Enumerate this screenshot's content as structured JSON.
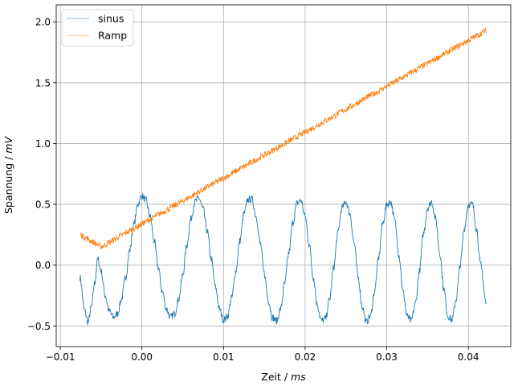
{
  "chart_data": {
    "type": "line",
    "xlabel_main": "Zeit / ",
    "xlabel_unit": "ms",
    "ylabel_main": "Spannung / ",
    "ylabel_unit": "mV",
    "xlim": [
      -0.0105,
      0.0452
    ],
    "ylim": [
      -0.67,
      2.14
    ],
    "xticks": [
      -0.01,
      0.0,
      0.01,
      0.02,
      0.03,
      0.04
    ],
    "xtick_labels": [
      "−0.01",
      "0.00",
      "0.01",
      "0.02",
      "0.03",
      "0.04"
    ],
    "yticks": [
      -0.5,
      0.0,
      0.5,
      1.0,
      1.5,
      2.0
    ],
    "ytick_labels": [
      "−0.5",
      "0.0",
      "0.5",
      "1.0",
      "1.5",
      "2.0"
    ],
    "grid": true,
    "legend_position": "upper-left",
    "series": [
      {
        "name": "sinus",
        "color": "#1f77b4",
        "noise": 0.03,
        "x": [
          -0.0076,
          -0.007,
          -0.0066,
          -0.0062,
          -0.0058,
          -0.0054,
          -0.005,
          -0.0045,
          -0.004,
          -0.0035,
          -0.003,
          -0.0025,
          -0.002,
          -0.0015,
          -0.001,
          -0.0005,
          0.0,
          0.0005,
          0.001,
          0.0015,
          0.002,
          0.0025,
          0.003,
          0.0035,
          0.004,
          0.0045,
          0.005,
          0.0055,
          0.006,
          0.0065,
          0.007,
          0.0075,
          0.008,
          0.0085,
          0.009,
          0.0095,
          0.01,
          0.0105,
          0.011,
          0.0115,
          0.012,
          0.0125,
          0.013,
          0.0135,
          0.014,
          0.0145,
          0.015,
          0.0155,
          0.016,
          0.0165,
          0.017,
          0.0175,
          0.018,
          0.0185,
          0.019,
          0.0195,
          0.02,
          0.0205,
          0.021,
          0.0215,
          0.022,
          0.0225,
          0.023,
          0.0235,
          0.024,
          0.0245,
          0.025,
          0.0255,
          0.026,
          0.0265,
          0.027,
          0.0275,
          0.028,
          0.0285,
          0.029,
          0.0295,
          0.03,
          0.0305,
          0.031,
          0.0315,
          0.032,
          0.0325,
          0.033,
          0.0335,
          0.034,
          0.0345,
          0.035,
          0.0355,
          0.036,
          0.0365,
          0.037,
          0.0375,
          0.038,
          0.0385,
          0.039,
          0.0395,
          0.04,
          0.0405,
          0.041,
          0.0415,
          0.0422
        ],
        "y": [
          -0.1,
          -0.38,
          -0.47,
          -0.35,
          -0.15,
          0.05,
          -0.05,
          -0.25,
          -0.38,
          -0.43,
          -0.4,
          -0.28,
          -0.1,
          0.12,
          0.33,
          0.5,
          0.57,
          0.53,
          0.4,
          0.2,
          -0.02,
          -0.22,
          -0.36,
          -0.43,
          -0.4,
          -0.28,
          -0.08,
          0.16,
          0.38,
          0.52,
          0.55,
          0.46,
          0.28,
          0.05,
          -0.18,
          -0.36,
          -0.45,
          -0.42,
          -0.27,
          -0.05,
          0.2,
          0.42,
          0.54,
          0.54,
          0.4,
          0.18,
          -0.07,
          -0.29,
          -0.43,
          -0.46,
          -0.36,
          -0.15,
          0.1,
          0.35,
          0.51,
          0.53,
          0.4,
          0.17,
          -0.1,
          -0.33,
          -0.46,
          -0.44,
          -0.28,
          -0.02,
          0.26,
          0.47,
          0.52,
          0.42,
          0.18,
          -0.1,
          -0.34,
          -0.47,
          -0.42,
          -0.22,
          0.06,
          0.34,
          0.5,
          0.52,
          0.36,
          0.08,
          -0.22,
          -0.42,
          -0.46,
          -0.32,
          -0.05,
          0.26,
          0.47,
          0.52,
          0.38,
          0.1,
          -0.2,
          -0.42,
          -0.45,
          -0.28,
          0.0,
          0.3,
          0.5,
          0.5,
          0.3,
          0.0,
          -0.32
        ]
      },
      {
        "name": "Ramp",
        "color": "#ff7f0e",
        "noise": 0.025,
        "x": [
          -0.0075,
          -0.005,
          0.0422
        ],
        "y": [
          0.25,
          0.15,
          1.93
        ]
      }
    ]
  }
}
